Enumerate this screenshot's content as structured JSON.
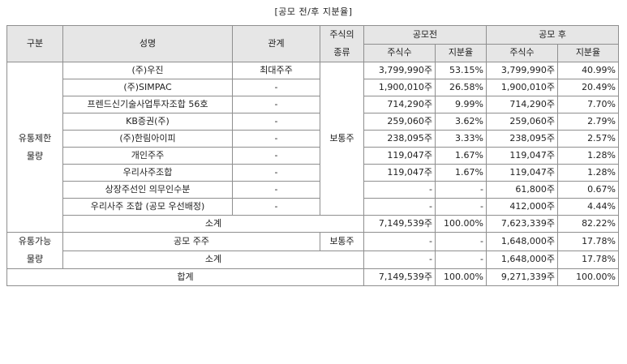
{
  "caption": "[공모 전/후 지분율]",
  "header": {
    "category": "구분",
    "name": "성명",
    "relation": "관계",
    "stock_type": "주식의\n종류",
    "before": "공모전",
    "after": "공모 후",
    "shares": "주식수",
    "ratio": "지분율"
  },
  "restricted": {
    "label": "유통제한\n물량",
    "stock_type": "보통주",
    "rows": [
      {
        "name": "(주)우진",
        "relation": "최대주주",
        "shares_before": "3,799,990주",
        "ratio_before": "53.15%",
        "shares_after": "3,799,990주",
        "ratio_after": "40.99%"
      },
      {
        "name": "(주)SIMPAC",
        "relation": "-",
        "shares_before": "1,900,010주",
        "ratio_before": "26.58%",
        "shares_after": "1,900,010주",
        "ratio_after": "20.49%"
      },
      {
        "name": "프렌드신기술사업투자조합 56호",
        "relation": "-",
        "shares_before": "714,290주",
        "ratio_before": "9.99%",
        "shares_after": "714,290주",
        "ratio_after": "7.70%"
      },
      {
        "name": "KB증권(주)",
        "relation": "-",
        "shares_before": "259,060주",
        "ratio_before": "3.62%",
        "shares_after": "259,060주",
        "ratio_after": "2.79%"
      },
      {
        "name": "(주)한림아이피",
        "relation": "-",
        "shares_before": "238,095주",
        "ratio_before": "3.33%",
        "shares_after": "238,095주",
        "ratio_after": "2.57%"
      },
      {
        "name": "개인주주",
        "relation": "-",
        "shares_before": "119,047주",
        "ratio_before": "1.67%",
        "shares_after": "119,047주",
        "ratio_after": "1.28%"
      },
      {
        "name": "우리사주조합",
        "relation": "-",
        "shares_before": "119,047주",
        "ratio_before": "1.67%",
        "shares_after": "119,047주",
        "ratio_after": "1.28%"
      },
      {
        "name": "상장주선인 의무인수분",
        "relation": "-",
        "shares_before": "-",
        "ratio_before": "-",
        "shares_after": "61,800주",
        "ratio_after": "0.67%"
      },
      {
        "name": "우리사주 조합 (공모 우선배정)",
        "relation": "-",
        "shares_before": "-",
        "ratio_before": "-",
        "shares_after": "412,000주",
        "ratio_after": "4.44%"
      }
    ],
    "subtotal": {
      "label": "소계",
      "shares_before": "7,149,539주",
      "ratio_before": "100.00%",
      "shares_after": "7,623,339주",
      "ratio_after": "82.22%"
    }
  },
  "tradable": {
    "label": "유통가능\n물량",
    "row": {
      "name": "공모 주주",
      "stock_type": "보통주",
      "shares_before": "-",
      "ratio_before": "-",
      "shares_after": "1,648,000주",
      "ratio_after": "17.78%"
    },
    "subtotal": {
      "label": "소계",
      "shares_before": "-",
      "ratio_before": "-",
      "shares_after": "1,648,000주",
      "ratio_after": "17.78%"
    }
  },
  "total": {
    "label": "합계",
    "shares_before": "7,149,539주",
    "ratio_before": "100.00%",
    "shares_after": "9,271,339주",
    "ratio_after": "100.00%"
  }
}
